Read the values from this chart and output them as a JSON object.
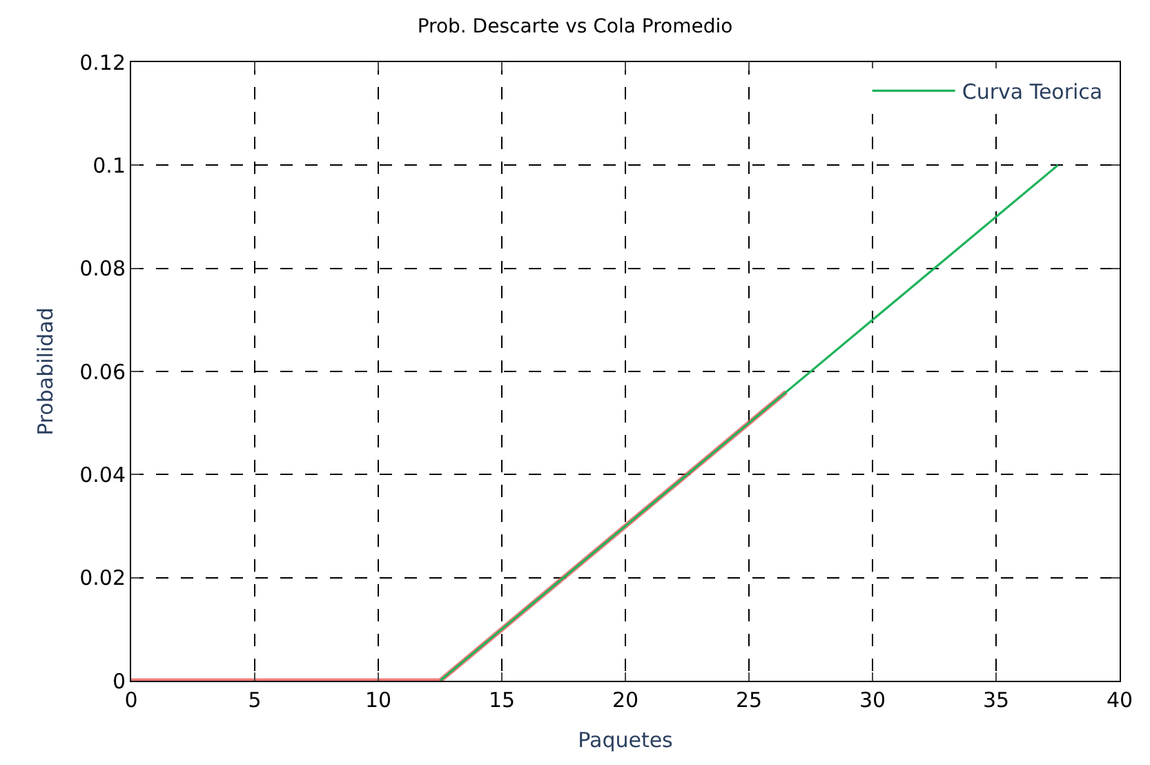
{
  "chart_data": {
    "type": "line",
    "title": "Prob. Descarte vs Cola Promedio",
    "xlabel": "Paquetes",
    "ylabel": "Probabilidad",
    "series": [
      {
        "color": "#e8504a",
        "x": [
          0,
          5,
          10,
          12.5,
          14,
          16,
          18,
          20,
          22,
          24,
          26.5
        ],
        "values": [
          0,
          0,
          0,
          0,
          0.006,
          0.014,
          0.022,
          0.03,
          0.038,
          0.046,
          0.056
        ]
      },
      {
        "name": "Curva Teorica",
        "color": "#1fb35c",
        "x": [
          12.5,
          37.5
        ],
        "values": [
          0,
          0.1
        ]
      }
    ],
    "xlim": [
      0,
      40
    ],
    "xticks": [
      0,
      5,
      10,
      15,
      20,
      25,
      30,
      35,
      40
    ],
    "ylim": [
      0,
      0.12
    ],
    "yticks": [
      0,
      0.02,
      0.04,
      0.06,
      0.08,
      0.1,
      0.12
    ],
    "grid": true,
    "legend": "top right",
    "line_style": "solid",
    "marker": "none"
  }
}
